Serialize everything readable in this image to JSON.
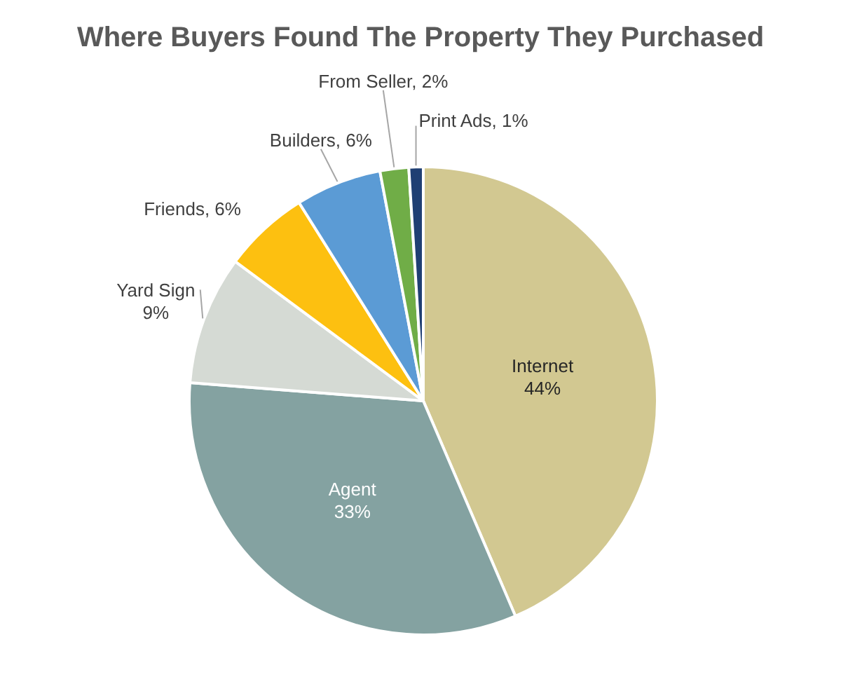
{
  "chart_data": {
    "type": "pie",
    "title": "Where Buyers Found The Property They Purchased",
    "categories": [
      "Internet",
      "Agent",
      "Yard Sign",
      "Friends",
      "Builders",
      "From Seller",
      "Print Ads"
    ],
    "values": [
      44,
      33,
      9,
      6,
      6,
      2,
      1
    ],
    "value_labels": [
      "44%",
      "33%",
      "9%",
      "6%",
      "6%",
      "2%",
      "1%"
    ],
    "colors": [
      "#d2c891",
      "#84a2a1",
      "#d5dad4",
      "#fdc010",
      "#5b9bd5",
      "#70ad47",
      "#1f3f73"
    ]
  }
}
